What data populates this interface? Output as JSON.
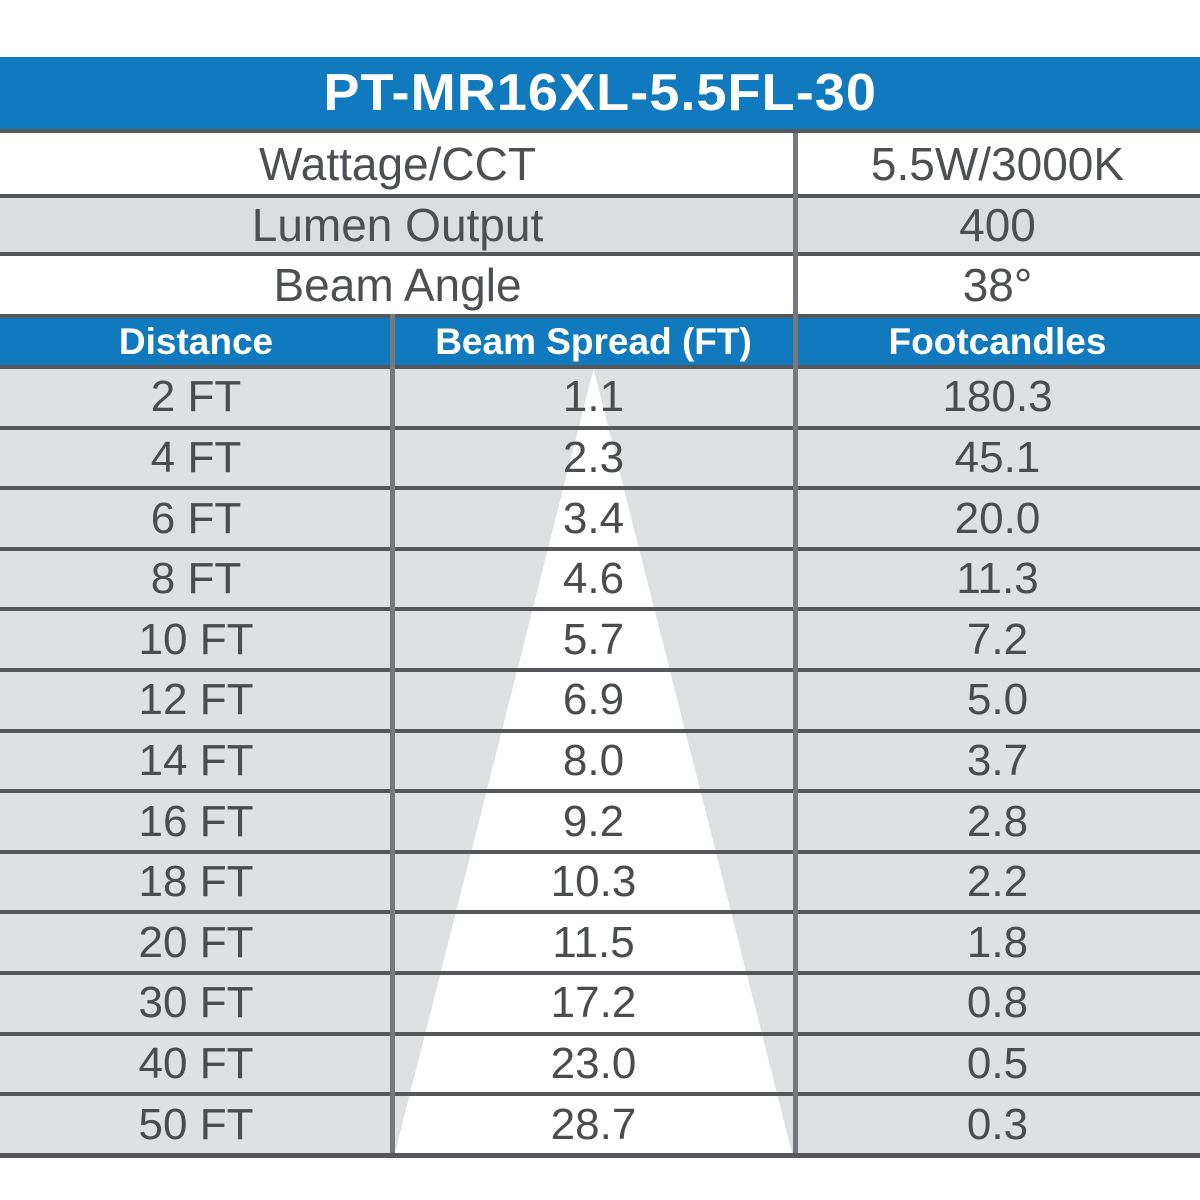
{
  "product": {
    "model": "PT-MR16XL-5.5FL-30"
  },
  "specs": [
    {
      "label": "Wattage/CCT",
      "value": "5.5W/3000K"
    },
    {
      "label": "Lumen Output",
      "value": "400"
    },
    {
      "label": "Beam Angle",
      "value": "38°"
    }
  ],
  "photometrics": {
    "columns": [
      "Distance",
      "Beam Spread (FT)",
      "Footcandles"
    ],
    "rows": [
      [
        "2 FT",
        "1.1",
        "180.3"
      ],
      [
        "4 FT",
        "2.3",
        "45.1"
      ],
      [
        "6 FT",
        "3.4",
        "20.0"
      ],
      [
        "8 FT",
        "4.6",
        "11.3"
      ],
      [
        "10 FT",
        "5.7",
        "7.2"
      ],
      [
        "12 FT",
        "6.9",
        "5.0"
      ],
      [
        "14 FT",
        "8.0",
        "3.7"
      ],
      [
        "16 FT",
        "9.2",
        "2.8"
      ],
      [
        "18 FT",
        "10.3",
        "2.2"
      ],
      [
        "20 FT",
        "11.5",
        "1.8"
      ],
      [
        "30 FT",
        "17.2",
        "0.8"
      ],
      [
        "40 FT",
        "23.0",
        "0.5"
      ],
      [
        "50 FT",
        "28.7",
        "0.3"
      ]
    ]
  },
  "graphics": {
    "beam_cone": "white-cone-beam-spread-overlay"
  },
  "colors": {
    "accent_blue": "#1179bd",
    "row_gray": "#dfe0e1",
    "border_dark": "#55575a",
    "divider_gray": "#77787b",
    "text_gray": "#4a4c4e",
    "beam_white": "#ffffff"
  }
}
